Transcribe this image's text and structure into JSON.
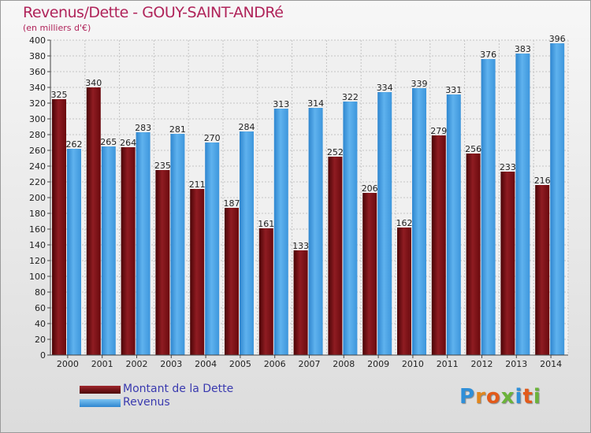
{
  "title": "Revenus/Dette - GOUY-SAINT-ANDRé",
  "subtitle": "(en milliers d'€)",
  "logo_text": "Proxiti",
  "chart_data": {
    "type": "bar",
    "categories": [
      "2000",
      "2001",
      "2002",
      "2003",
      "2004",
      "2005",
      "2006",
      "2007",
      "2008",
      "2009",
      "2010",
      "2011",
      "2012",
      "2013",
      "2014"
    ],
    "series": [
      {
        "name": "Montant de la Dette",
        "color": "#7a0e12",
        "values": [
          325,
          340,
          264,
          235,
          211,
          187,
          161,
          133,
          252,
          206,
          162,
          279,
          256,
          233,
          216
        ]
      },
      {
        "name": "Revenus",
        "color": "#3f9ce0",
        "values": [
          262,
          265,
          283,
          281,
          270,
          284,
          313,
          314,
          322,
          334,
          339,
          331,
          376,
          383,
          396
        ]
      }
    ],
    "ylim": [
      0,
      400
    ],
    "ytick_step": 20,
    "grid": true
  }
}
